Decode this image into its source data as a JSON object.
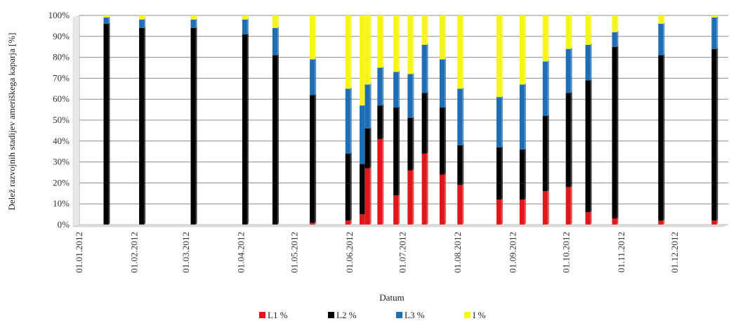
{
  "chart_data": {
    "type": "bar",
    "stacked": true,
    "xlabel": "Datum",
    "ylabel": "Delež razvojnih stadijev ameriškega kaparja [%]",
    "ylim": [
      0,
      100
    ],
    "yticks": [
      "0%",
      "10%",
      "20%",
      "30%",
      "40%",
      "50%",
      "60%",
      "70%",
      "80%",
      "90%",
      "100%"
    ],
    "x_axis_range": [
      "01.01.2012",
      "31.12.2012"
    ],
    "xticks": [
      "01.01.2012",
      "01.02.2012",
      "01.03.2012",
      "01.04.2012",
      "01.05.2012",
      "01.06.2012",
      "01.07.2012",
      "01.08.2012",
      "01.09.2012",
      "01.10.2012",
      "01.11.2012",
      "01.12.2012"
    ],
    "grid": true,
    "legend_position": "bottom",
    "series": [
      {
        "name": "L1 %",
        "color": "#e0161a"
      },
      {
        "name": "L2 %",
        "color": "#000000"
      },
      {
        "name": "L3 %",
        "color": "#1f6db5"
      },
      {
        "name": "I %",
        "color": "#f5f51a"
      }
    ],
    "bars": [
      {
        "date": "2012-01-16",
        "values": [
          0,
          96,
          3,
          1
        ]
      },
      {
        "date": "2012-02-05",
        "values": [
          0,
          94,
          4,
          2
        ]
      },
      {
        "date": "2012-03-05",
        "values": [
          0,
          94,
          4,
          2
        ]
      },
      {
        "date": "2012-04-03",
        "values": [
          0,
          91,
          7,
          2
        ]
      },
      {
        "date": "2012-04-20",
        "values": [
          0,
          81,
          13,
          6
        ]
      },
      {
        "date": "2012-05-11",
        "values": [
          1,
          61,
          17,
          21
        ]
      },
      {
        "date": "2012-05-31",
        "values": [
          2,
          32,
          31,
          35
        ]
      },
      {
        "date": "2012-06-08",
        "values": [
          5,
          24,
          28,
          43
        ]
      },
      {
        "date": "2012-06-11",
        "values": [
          27,
          19,
          21,
          33
        ]
      },
      {
        "date": "2012-06-18",
        "values": [
          41,
          16,
          18,
          25
        ]
      },
      {
        "date": "2012-06-27",
        "values": [
          14,
          42,
          17,
          27
        ]
      },
      {
        "date": "2012-07-05",
        "values": [
          26,
          25,
          21,
          28
        ]
      },
      {
        "date": "2012-07-13",
        "values": [
          34,
          29,
          23,
          14
        ]
      },
      {
        "date": "2012-07-23",
        "values": [
          24,
          32,
          23,
          21
        ]
      },
      {
        "date": "2012-08-02",
        "values": [
          19,
          19,
          27,
          35
        ]
      },
      {
        "date": "2012-08-24",
        "values": [
          12,
          25,
          24,
          39
        ]
      },
      {
        "date": "2012-09-06",
        "values": [
          12,
          24,
          31,
          33
        ]
      },
      {
        "date": "2012-09-19",
        "values": [
          16,
          36,
          26,
          22
        ]
      },
      {
        "date": "2012-10-02",
        "values": [
          18,
          45,
          21,
          16
        ]
      },
      {
        "date": "2012-10-13",
        "values": [
          6,
          63,
          17,
          14
        ]
      },
      {
        "date": "2012-10-28",
        "values": [
          3,
          82,
          7,
          8
        ]
      },
      {
        "date": "2012-11-23",
        "values": [
          2,
          79,
          15,
          4
        ]
      },
      {
        "date": "2012-12-23",
        "values": [
          2,
          82,
          15,
          1
        ]
      }
    ]
  }
}
